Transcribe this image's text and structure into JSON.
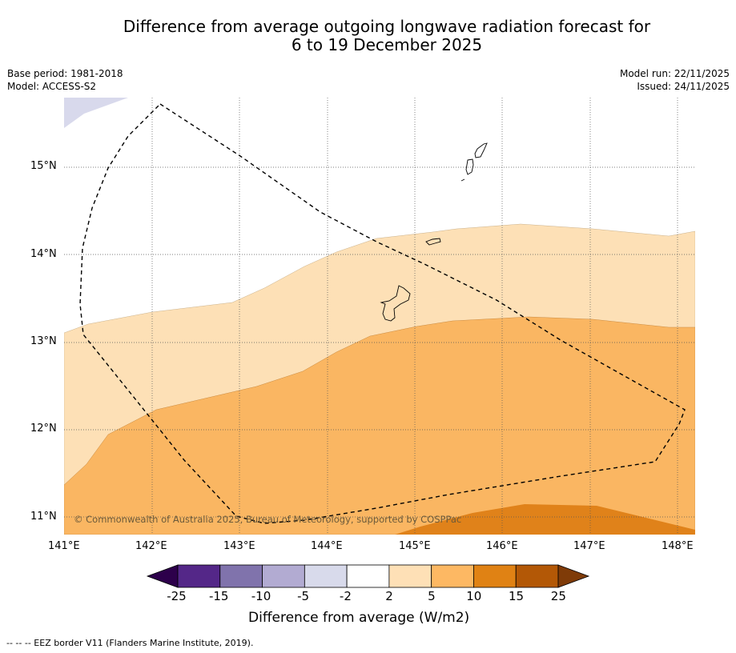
{
  "title": {
    "line1": "Difference from average outgoing longwave radiation forecast for",
    "line2": "6 to 19 December 2025"
  },
  "meta_left": {
    "base_period": "Base period: 1981-2018",
    "model": "Model: ACCESS-S2"
  },
  "meta_right": {
    "model_run": "Model run: 22/11/2025",
    "issued": "Issued: 24/11/2025"
  },
  "map": {
    "lon_labels": [
      "141°E",
      "142°E",
      "143°E",
      "144°E",
      "145°E",
      "146°E",
      "147°E",
      "148°E"
    ],
    "lat_labels": [
      "15°N",
      "14°N",
      "13°N",
      "12°N",
      "11°N"
    ],
    "copyright": "© Commonwealth of Australia 2025, Bureau of Meteorology, supported by COSPPac",
    "colors": {
      "c_m5_m2": "#d8d9ec",
      "c_2_5": "#fde0b6",
      "c_5_10": "#fab662",
      "c_10_15": "#e0821a",
      "coast": "#000000"
    }
  },
  "colorbar": {
    "labels": [
      "-25",
      "-15",
      "-10",
      "-5",
      "-2",
      "2",
      "5",
      "10",
      "15",
      "25"
    ],
    "colors": [
      "#2d004b",
      "#542788",
      "#8073ac",
      "#b2abd2",
      "#d8daeb",
      "#ffffff",
      "#fee0b6",
      "#fdb863",
      "#e08214",
      "#b35806",
      "#7f3b08"
    ],
    "title": "Difference from average (W/m2)"
  },
  "footer": "--  --  -- EEZ border V11 (Flanders Marine Institute, 2019)."
}
